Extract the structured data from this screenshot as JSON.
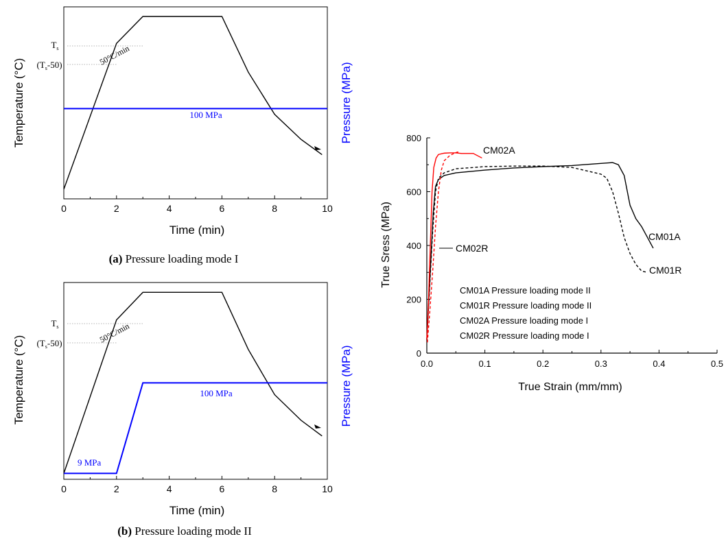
{
  "panels": [
    {
      "caption_letter": "(a)",
      "caption_text": " Pressure loading mode I",
      "xlabel": "Time (min)",
      "ylabel": "Temperature (°C)",
      "y2label": "Pressure (MPa)",
      "ts_label": "T",
      "ts_sub": "s",
      "ts50_label_a": "(T",
      "ts50_label_sub": "s",
      "ts50_label_b": "-50)",
      "rate_label": "50°C/min",
      "pressure_label": "100 MPa"
    },
    {
      "caption_letter": "(b)",
      "caption_text": " Pressure loading mode II",
      "xlabel": "Time (min)",
      "ylabel": "Temperature (°C)",
      "y2label": "Pressure (MPa)",
      "ts_label": "T",
      "ts_sub": "s",
      "ts50_label_a": "(T",
      "ts50_label_sub": "s",
      "ts50_label_b": "-50)",
      "rate_label": "50°C/min",
      "pressure_label": "100 MPa",
      "low_pressure_label": "9 MPa"
    }
  ],
  "colors": {
    "temperature": "#000000",
    "pressure": "#0000ff",
    "cm02": "#ff0000",
    "cm01": "#000000"
  },
  "chart_data": [
    {
      "type": "line",
      "title": "",
      "xlabel": "Time (min)",
      "ylabel": "Temperature (°C)",
      "y2label": "Pressure (MPa)",
      "xlim": [
        0,
        10
      ],
      "xticks": [
        "0",
        "2",
        "4",
        "6",
        "8",
        "10"
      ],
      "series": [
        {
          "name": "",
          "role": "temperature",
          "x": [
            0,
            2,
            3,
            6,
            7,
            8,
            9,
            9.8
          ],
          "y_level": [
            0.05,
            0.81,
            0.95,
            0.95,
            0.66,
            0.44,
            0.31,
            0.23
          ]
        },
        {
          "name": "",
          "role": "pressure",
          "x": [
            0,
            10
          ],
          "y_level": [
            0.47,
            0.47
          ]
        }
      ]
    },
    {
      "type": "line",
      "title": "",
      "xlabel": "Time (min)",
      "ylabel": "Temperature (°C)",
      "y2label": "Pressure (MPa)",
      "xlim": [
        0,
        10
      ],
      "xticks": [
        "0",
        "2",
        "4",
        "6",
        "8",
        "10"
      ],
      "series": [
        {
          "name": "",
          "role": "temperature",
          "x": [
            0,
            2,
            3,
            6,
            7,
            8,
            9,
            9.8
          ],
          "y_level": [
            0.03,
            0.81,
            0.95,
            0.95,
            0.66,
            0.43,
            0.3,
            0.22
          ]
        },
        {
          "name": "",
          "role": "pressure",
          "x": [
            0,
            2,
            3,
            10
          ],
          "y_level": [
            0.03,
            0.03,
            0.49,
            0.49
          ]
        }
      ]
    },
    {
      "type": "line",
      "title": "",
      "xlabel": "True Strain (mm/mm)",
      "ylabel": "True Sress (MPa)",
      "xlim": [
        0,
        0.5
      ],
      "ylim": [
        0,
        800
      ],
      "xticks": [
        "0.0",
        "0.1",
        "0.2",
        "0.3",
        "0.4",
        "0.5"
      ],
      "yticks": [
        "0",
        "200",
        "400",
        "600",
        "800"
      ],
      "legend_lines": [
        "CM01A Pressure loading mode II",
        "CM01R Pressure loading mode II",
        "CM02A Pressure loading mode I",
        "CM02R Pressure loading mode I"
      ],
      "series": [
        {
          "name": "CM01A",
          "style": "solid",
          "color": "#000000",
          "x": [
            0,
            0.003,
            0.007,
            0.011,
            0.015,
            0.02,
            0.03,
            0.05,
            0.1,
            0.15,
            0.2,
            0.25,
            0.3,
            0.32,
            0.33,
            0.34,
            0.35,
            0.36,
            0.37,
            0.38,
            0.39
          ],
          "y": [
            50,
            180,
            350,
            520,
            620,
            645,
            660,
            670,
            680,
            688,
            693,
            697,
            705,
            708,
            700,
            660,
            550,
            500,
            470,
            430,
            390
          ]
        },
        {
          "name": "CM01R",
          "style": "dashed",
          "color": "#000000",
          "x": [
            0,
            0.005,
            0.01,
            0.015,
            0.02,
            0.03,
            0.05,
            0.1,
            0.15,
            0.2,
            0.25,
            0.28,
            0.3,
            0.31,
            0.32,
            0.33,
            0.34,
            0.35,
            0.36,
            0.37,
            0.38
          ],
          "y": [
            50,
            250,
            450,
            600,
            650,
            670,
            685,
            693,
            695,
            695,
            690,
            675,
            665,
            650,
            600,
            520,
            430,
            370,
            330,
            305,
            300
          ]
        },
        {
          "name": "CM02A",
          "style": "solid",
          "color": "#ff0000",
          "x": [
            0,
            0.003,
            0.006,
            0.009,
            0.012,
            0.016,
            0.02,
            0.03,
            0.04,
            0.05,
            0.06,
            0.08,
            0.095
          ],
          "y": [
            50,
            200,
            400,
            600,
            690,
            725,
            738,
            743,
            744,
            744,
            742,
            742,
            725
          ]
        },
        {
          "name": "CM02R",
          "style": "dashed",
          "color": "#ff0000",
          "x": [
            0.001,
            0.005,
            0.01,
            0.015,
            0.02,
            0.025,
            0.03,
            0.04,
            0.05,
            0.055
          ],
          "y": [
            40,
            150,
            300,
            470,
            600,
            680,
            715,
            735,
            745,
            748
          ]
        }
      ],
      "annotations": [
        "CM02A",
        "CM02R",
        "CM01A",
        "CM01R"
      ]
    }
  ]
}
